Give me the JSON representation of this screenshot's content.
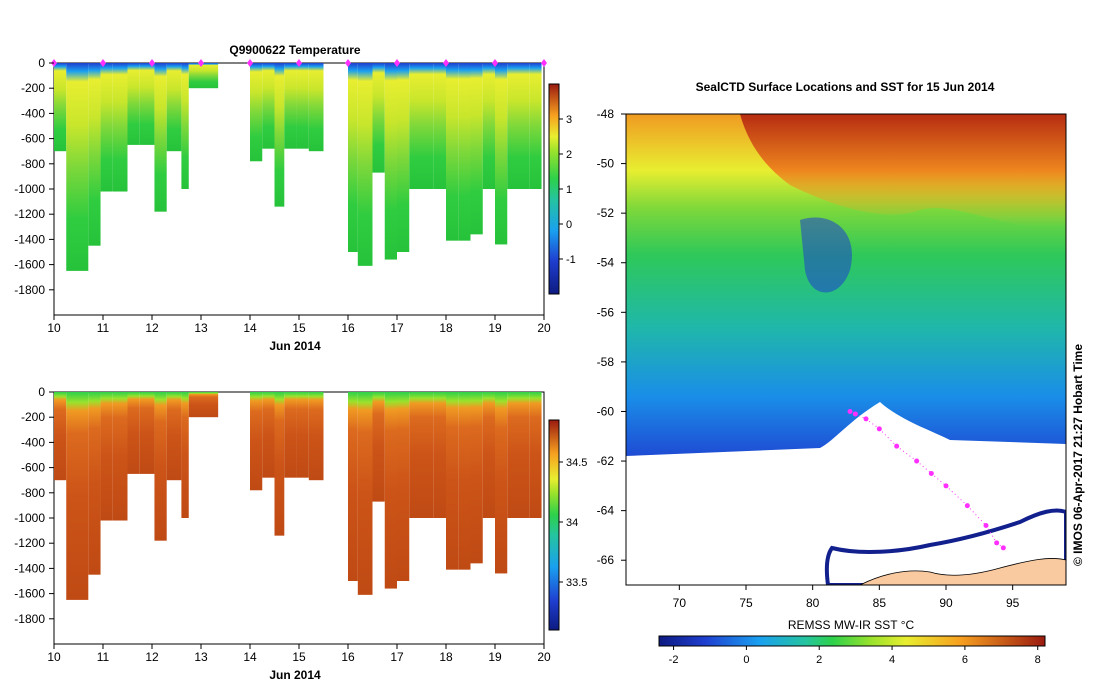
{
  "chart_data": [
    {
      "type": "heatmap",
      "panel": "temperature-profile",
      "title": "Q9900622  Temperature",
      "xlabel": "Jun 2014",
      "ylabel": "",
      "xlim": [
        10,
        20
      ],
      "ylim": [
        -2000,
        0
      ],
      "xticks": [
        "10",
        "11",
        "12",
        "13",
        "14",
        "15",
        "16",
        "17",
        "18",
        "19",
        "20"
      ],
      "yticks": [
        "0",
        "-200",
        "-400",
        "-600",
        "-800",
        "-1000",
        "-1200",
        "-1400",
        "-1600",
        "-1800"
      ],
      "colorbar": {
        "min": -2,
        "max": 4,
        "ticks": [
          "-1",
          "0",
          "1",
          "2",
          "3"
        ]
      },
      "profile_times": [
        10.0,
        10.25,
        10.5,
        10.7,
        10.95,
        11.2,
        11.5,
        11.75,
        12.05,
        12.3,
        12.6,
        12.75,
        13.0,
        14.0,
        14.25,
        14.5,
        14.7,
        14.95,
        15.2,
        15.5,
        16.0,
        16.2,
        16.5,
        16.75,
        17.0,
        17.25,
        17.5,
        17.75,
        18.0,
        18.25,
        18.5,
        18.75,
        19.0,
        19.25,
        19.5,
        19.7
      ],
      "profile_max_depths": [
        -700,
        -1650,
        -1650,
        -1450,
        -1020,
        -1020,
        -650,
        -650,
        -1180,
        -700,
        -1000,
        -200,
        -200,
        -780,
        -680,
        -1140,
        -680,
        -680,
        -700,
        0,
        -1500,
        -1610,
        -870,
        -1560,
        -1500,
        -1000,
        -1000,
        -1000,
        -1410,
        -1410,
        -1360,
        -1000,
        -1440,
        -1000,
        -1000,
        -1000
      ],
      "profile_markers_x": [
        10,
        11,
        12,
        13,
        14,
        15,
        16,
        17,
        18,
        19,
        20
      ]
    },
    {
      "type": "heatmap",
      "panel": "salinity-profile",
      "title": "",
      "xlabel": "Jun 2014",
      "ylabel": "",
      "xlim": [
        10,
        20
      ],
      "ylim": [
        -2000,
        0
      ],
      "xticks": [
        "10",
        "11",
        "12",
        "13",
        "14",
        "15",
        "16",
        "17",
        "18",
        "19",
        "20"
      ],
      "yticks": [
        "0",
        "-200",
        "-400",
        "-600",
        "-800",
        "-1000",
        "-1200",
        "-1400",
        "-1600",
        "-1800"
      ],
      "colorbar": {
        "min": 33.1,
        "max": 34.85,
        "ticks": [
          "33.5",
          "34",
          "34.5"
        ]
      },
      "profile_times": [
        10.0,
        10.25,
        10.5,
        10.7,
        10.95,
        11.2,
        11.5,
        11.75,
        12.05,
        12.3,
        12.6,
        12.75,
        13.0,
        14.0,
        14.25,
        14.5,
        14.7,
        14.95,
        15.2,
        15.5,
        16.0,
        16.2,
        16.5,
        16.75,
        17.0,
        17.25,
        17.5,
        17.75,
        18.0,
        18.25,
        18.5,
        18.75,
        19.0,
        19.25,
        19.5,
        19.7
      ],
      "profile_max_depths": [
        -700,
        -1650,
        -1650,
        -1450,
        -1020,
        -1020,
        -650,
        -650,
        -1180,
        -700,
        -1000,
        -200,
        -200,
        -780,
        -680,
        -1140,
        -680,
        -680,
        -700,
        0,
        -1500,
        -1610,
        -870,
        -1560,
        -1500,
        -1000,
        -1000,
        -1000,
        -1410,
        -1410,
        -1360,
        -1000,
        -1440,
        -1000,
        -1000,
        -1000
      ]
    },
    {
      "type": "heatmap",
      "panel": "sst-map",
      "title": "SealCTD Surface Locations and SST for 15 Jun 2014",
      "xlabel": "",
      "ylabel": "",
      "xlim": [
        66,
        99
      ],
      "ylim": [
        -67,
        -48
      ],
      "xticks": [
        "70",
        "75",
        "80",
        "85",
        "90",
        "95"
      ],
      "yticks": [
        "-48",
        "-50",
        "-52",
        "-54",
        "-56",
        "-58",
        "-60",
        "-62",
        "-64",
        "-66"
      ],
      "colorbar": {
        "label": "REMSS MW-IR SST °C",
        "min": -2.4,
        "max": 8.2,
        "ticks": [
          "-2",
          "0",
          "2",
          "4",
          "6",
          "8"
        ]
      },
      "ice_edge_lat": -61.8,
      "track_positions": [
        {
          "lon": 82.8,
          "lat": -60.0
        },
        {
          "lon": 83.2,
          "lat": -60.1
        },
        {
          "lon": 84.0,
          "lat": -60.3
        },
        {
          "lon": 85.0,
          "lat": -60.7
        },
        {
          "lon": 86.3,
          "lat": -61.4
        },
        {
          "lon": 87.8,
          "lat": -62.0
        },
        {
          "lon": 88.9,
          "lat": -62.5
        },
        {
          "lon": 90.0,
          "lat": -63.0
        },
        {
          "lon": 91.6,
          "lat": -63.8
        },
        {
          "lon": 93.0,
          "lat": -64.6
        },
        {
          "lon": 93.8,
          "lat": -65.3
        },
        {
          "lon": 94.3,
          "lat": -65.5
        }
      ]
    }
  ],
  "credit": "© IMOS 06-Apr-2017 21:27 Hobart Time"
}
